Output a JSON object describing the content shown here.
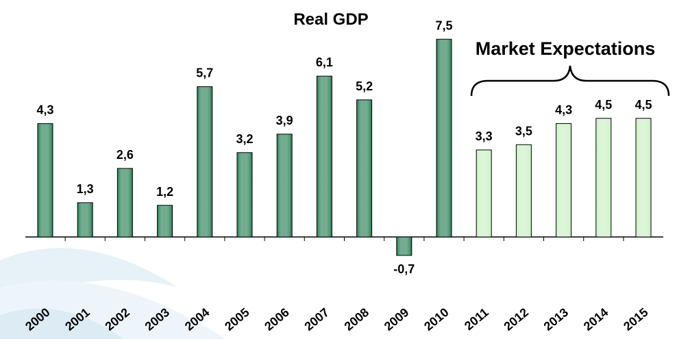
{
  "chart_data": {
    "type": "bar",
    "title": "Real GDP",
    "annotation": "Market Expectations",
    "categories": [
      "2000",
      "2001",
      "2002",
      "2003",
      "2004",
      "2005",
      "2006",
      "2007",
      "2008",
      "2009",
      "2010",
      "2011",
      "2012",
      "2013",
      "2014",
      "2015"
    ],
    "values": [
      4.3,
      1.3,
      2.6,
      1.2,
      5.7,
      3.2,
      3.9,
      6.1,
      5.2,
      -0.7,
      7.5,
      3.3,
      3.5,
      4.3,
      4.5,
      4.5
    ],
    "value_labels": [
      "4,3",
      "1,3",
      "2,6",
      "1,2",
      "5,7",
      "3,2",
      "3,9",
      "6,1",
      "5,2",
      "-0,7",
      "7,5",
      "3,3",
      "3,5",
      "4,3",
      "4,5",
      "4,5"
    ],
    "colors": [
      "#1f7a4d",
      "#1f7a4d",
      "#1f7a4d",
      "#1f7a4d",
      "#1f7a4d",
      "#1f7a4d",
      "#1f7a4d",
      "#1f7a4d",
      "#1f7a4d",
      "#1f7a4d",
      "#1f7a4d",
      "#c6efc0",
      "#c6efc0",
      "#c6efc0",
      "#c6efc0",
      "#c6efc0"
    ],
    "ylim": [
      -2,
      8
    ]
  }
}
